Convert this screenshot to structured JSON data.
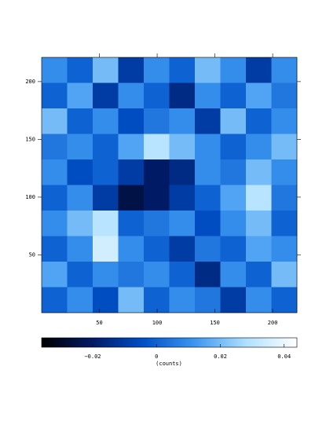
{
  "chart_data": {
    "type": "heatmap",
    "xlim": [
      0,
      221
    ],
    "ylim": [
      0,
      221
    ],
    "xticks": [
      50,
      100,
      150,
      200
    ],
    "yticks": [
      50,
      100,
      150,
      200
    ],
    "z": [
      [
        0.01,
        0.0,
        0.02,
        -0.01,
        0.01,
        0.0,
        0.02,
        0.01,
        -0.01,
        0.01
      ],
      [
        0.0,
        0.015,
        -0.01,
        0.01,
        0.0,
        -0.015,
        0.01,
        0.0,
        0.015,
        0.005
      ],
      [
        0.02,
        0.0,
        0.01,
        -0.005,
        0.005,
        0.01,
        -0.01,
        0.02,
        0.0,
        0.01
      ],
      [
        0.005,
        0.01,
        0.0,
        0.015,
        0.03,
        0.02,
        0.01,
        0.0,
        0.01,
        0.02
      ],
      [
        0.01,
        -0.005,
        0.0,
        -0.01,
        -0.02,
        -0.015,
        0.01,
        0.005,
        0.02,
        0.01
      ],
      [
        0.0,
        0.01,
        -0.01,
        -0.025,
        -0.02,
        -0.01,
        0.0,
        0.015,
        0.03,
        0.005
      ],
      [
        0.01,
        0.02,
        0.03,
        0.0,
        0.005,
        0.01,
        -0.005,
        0.01,
        0.02,
        0.0
      ],
      [
        0.0,
        0.01,
        0.035,
        0.01,
        0.0,
        -0.01,
        0.005,
        0.0,
        0.015,
        0.01
      ],
      [
        0.015,
        0.0,
        0.01,
        0.005,
        0.01,
        0.0,
        -0.015,
        0.01,
        0.0,
        0.02
      ],
      [
        0.0,
        0.01,
        -0.005,
        0.02,
        0.0,
        0.01,
        0.005,
        -0.01,
        0.01,
        0.0
      ]
    ],
    "colormap": [
      "#000000",
      "#001a66",
      "#0050c8",
      "#3c96f0",
      "#aee0ff",
      "#ffffff"
    ],
    "clim": [
      -0.036,
      0.044
    ],
    "cticks": [
      {
        "value": -0.02,
        "label": "−0.02"
      },
      0,
      0.02,
      0.04
    ],
    "colorbar_label": "(counts)"
  }
}
